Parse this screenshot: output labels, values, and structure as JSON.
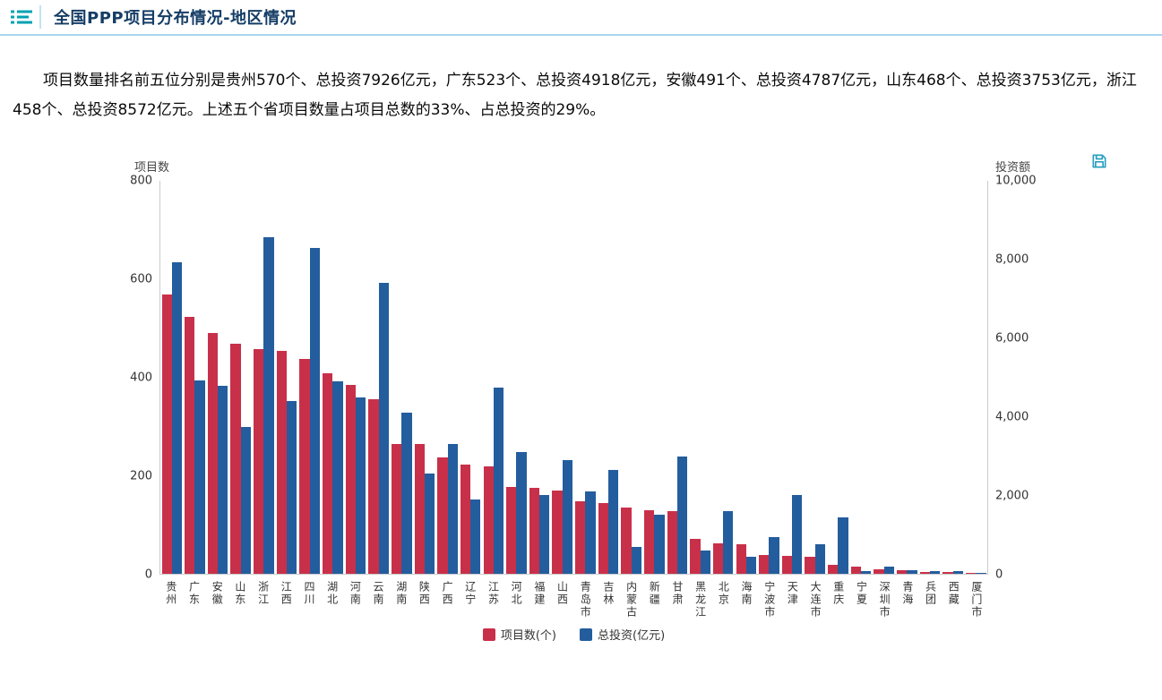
{
  "header": {
    "title": "全国PPP项目分布情况-地区情况"
  },
  "summary": {
    "text": "项目数量排名前五位分别是贵州570个、总投资7926亿元，广东523个、总投资4918亿元，安徽491个、总投资4787亿元，山东468个、总投资3753亿元，浙江458个、总投资8572亿元。上述五个省项目数量占项目总数的33%、占总投资的29%。"
  },
  "colors": {
    "accent_teal": "#00a2b3",
    "header_underline": "#a7d6ee",
    "title_text": "#153d66",
    "bar_red": "#c8304a",
    "bar_blue": "#235d9d",
    "axis_line": "#cccccc"
  },
  "chart_data": {
    "type": "bar",
    "title": "",
    "grid": false,
    "legend_position": "bottom",
    "left_axis": {
      "label": "项目数",
      "min": 0,
      "max": 800,
      "ticks": [
        "0",
        "200",
        "400",
        "600",
        "800"
      ]
    },
    "right_axis": {
      "label": "投资额",
      "min": 0,
      "max": 10000,
      "ticks": [
        "0",
        "2,000",
        "4,000",
        "6,000",
        "8,000",
        "10,000"
      ]
    },
    "categories": [
      "贵州",
      "广东",
      "安徽",
      "山东",
      "浙江",
      "江西",
      "四川",
      "湖北",
      "河南",
      "云南",
      "湖南",
      "陕西",
      "广西",
      "辽宁",
      "江苏",
      "河北",
      "福建",
      "山西",
      "青岛市",
      "吉林",
      "内蒙古",
      "新疆",
      "甘肃",
      "黑龙江",
      "北京",
      "海南",
      "宁波市",
      "天津",
      "大连市",
      "重庆",
      "宁夏",
      "深圳市",
      "青海",
      "兵团",
      "西藏",
      "厦门市"
    ],
    "series": [
      {
        "name": "项目数(个)",
        "axis": "left",
        "color": "#c8304a",
        "values": [
          570,
          523,
          491,
          468,
          458,
          455,
          437,
          408,
          385,
          355,
          265,
          265,
          238,
          222,
          220,
          178,
          175,
          170,
          148,
          145,
          135,
          130,
          128,
          72,
          62,
          60,
          38,
          37,
          35,
          18,
          15,
          10,
          8,
          5,
          4,
          3
        ]
      },
      {
        "name": "总投资(亿元)",
        "axis": "right",
        "color": "#235d9d",
        "values": [
          7926,
          4918,
          4787,
          3753,
          8572,
          4400,
          8300,
          4900,
          4500,
          7400,
          4100,
          2550,
          3300,
          1900,
          4750,
          3100,
          2000,
          2900,
          2100,
          2650,
          700,
          1500,
          3000,
          600,
          1600,
          450,
          950,
          2000,
          750,
          1450,
          80,
          180,
          90,
          70,
          80,
          40
        ]
      }
    ]
  }
}
